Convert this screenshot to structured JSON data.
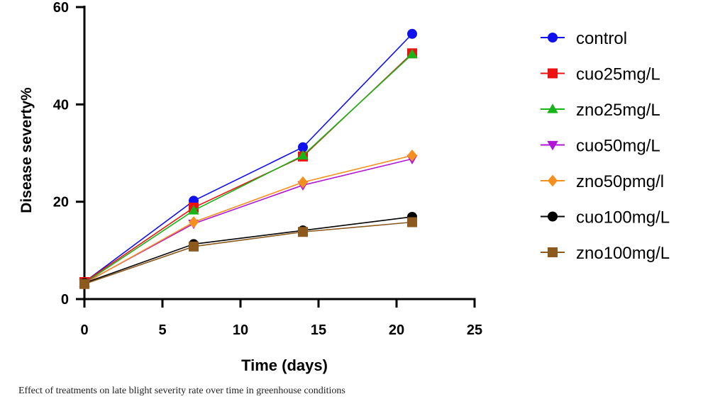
{
  "chart_data": {
    "type": "line",
    "title": "",
    "xlabel": "Time (days)",
    "ylabel": "Disease severty%",
    "xlim": [
      0,
      25
    ],
    "ylim": [
      0,
      60
    ],
    "xticks": [
      0,
      5,
      10,
      15,
      20,
      25
    ],
    "yticks": [
      0,
      20,
      40,
      60
    ],
    "x": [
      0,
      7,
      14,
      21
    ],
    "legend_position": "right",
    "series": [
      {
        "name": "control",
        "values": [
          3.5,
          20.2,
          31.2,
          54.5
        ],
        "color": "#1010ee",
        "marker": "circle"
      },
      {
        "name": "cuo25mg/L",
        "values": [
          3.5,
          18.8,
          29.3,
          50.5
        ],
        "color": "#ee1111",
        "marker": "square"
      },
      {
        "name": "zno25mg/L",
        "values": [
          3.3,
          18.2,
          29.5,
          50.3
        ],
        "color": "#17b517",
        "marker": "triangle-up"
      },
      {
        "name": "cuo50mg/L",
        "values": [
          3.3,
          15.5,
          23.4,
          28.8
        ],
        "color": "#b015d8",
        "marker": "triangle-down"
      },
      {
        "name": "zno50pmg/l",
        "values": [
          3.2,
          15.8,
          24.0,
          29.5
        ],
        "color": "#f5901e",
        "marker": "diamond"
      },
      {
        "name": "cuo100mg/L",
        "values": [
          3.3,
          11.3,
          14.1,
          16.9
        ],
        "color": "#000000",
        "marker": "circle"
      },
      {
        "name": "zno100mg/L",
        "values": [
          3.1,
          10.8,
          13.8,
          15.8
        ],
        "color": "#8b5a1c",
        "marker": "square"
      }
    ]
  },
  "caption": "Effect of treatments on late blight severity rate over time in greenhouse conditions"
}
